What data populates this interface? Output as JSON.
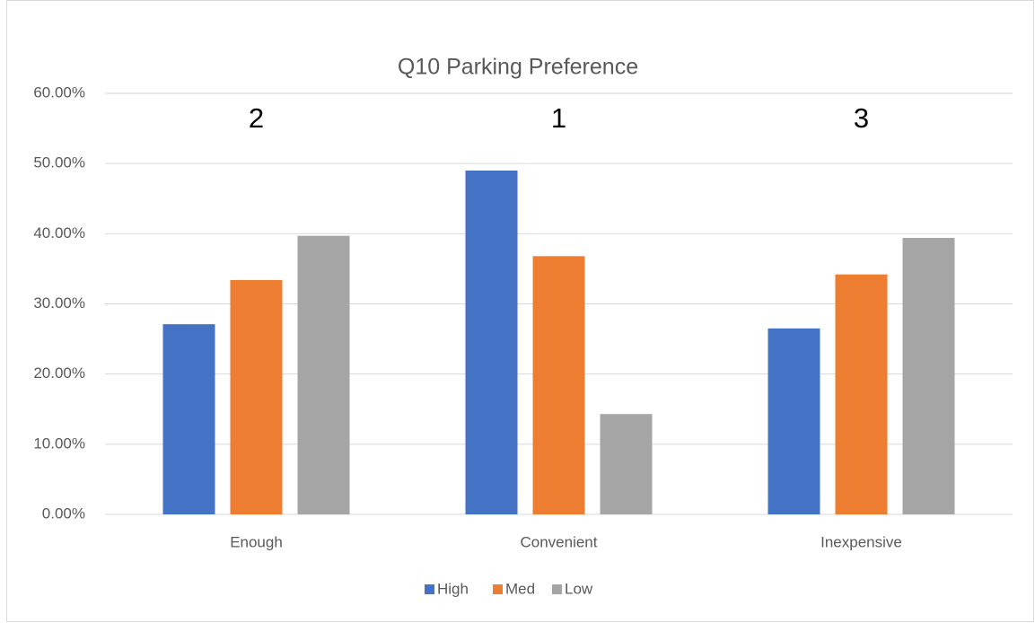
{
  "chart_data": {
    "type": "bar",
    "title": "Q10 Parking Preference",
    "categories": [
      "Enough",
      "Convenient",
      "Inexpensive"
    ],
    "series": [
      {
        "name": "High",
        "color": "#4472c4",
        "values": [
          27.1,
          49.0,
          26.5
        ]
      },
      {
        "name": "Med",
        "color": "#ed7d31",
        "values": [
          33.4,
          36.8,
          34.2
        ]
      },
      {
        "name": "Low",
        "color": "#a5a5a5",
        "values": [
          39.7,
          14.3,
          39.4
        ]
      }
    ],
    "annotations": [
      "2",
      "1",
      "3"
    ],
    "ylim": [
      0,
      60
    ],
    "yticks": [
      {
        "value": 0,
        "label": "0.00%"
      },
      {
        "value": 10,
        "label": "10.00%"
      },
      {
        "value": 20,
        "label": "20.00%"
      },
      {
        "value": 30,
        "label": "30.00%"
      },
      {
        "value": 40,
        "label": "40.00%"
      },
      {
        "value": 50,
        "label": "50.00%"
      },
      {
        "value": 60,
        "label": "60.00%"
      }
    ],
    "grid": true,
    "legend": "bottom"
  }
}
